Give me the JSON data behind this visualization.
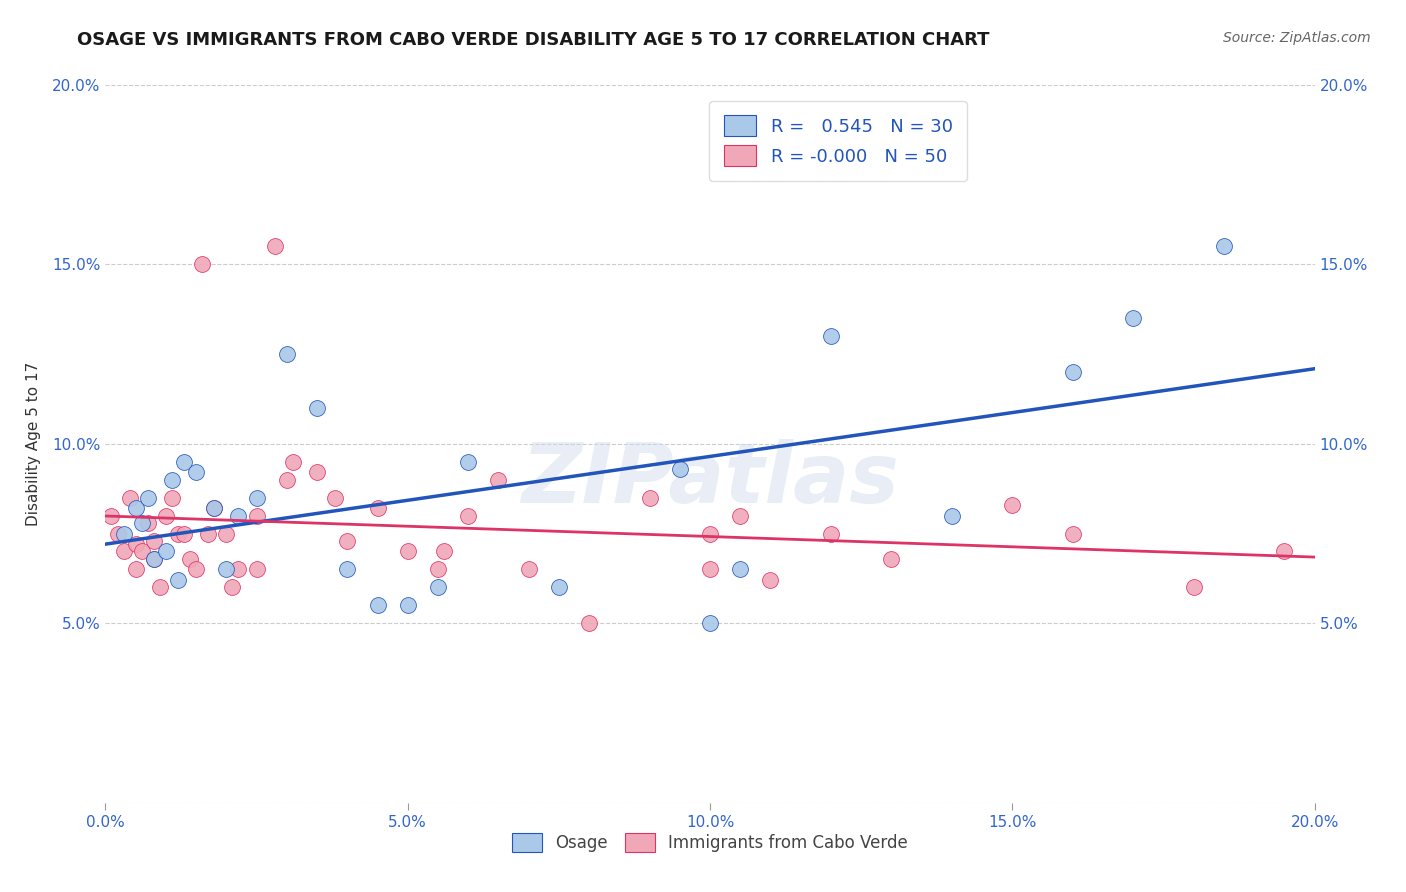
{
  "title": "OSAGE VS IMMIGRANTS FROM CABO VERDE DISABILITY AGE 5 TO 17 CORRELATION CHART",
  "source": "Source: ZipAtlas.com",
  "ylabel": "Disability Age 5 to 17",
  "xlim": [
    0.0,
    0.2
  ],
  "ylim": [
    0.0,
    0.2
  ],
  "xticks": [
    0.0,
    0.05,
    0.1,
    0.15,
    0.2
  ],
  "yticks": [
    0.0,
    0.05,
    0.1,
    0.15,
    0.2
  ],
  "xtick_labels": [
    "0.0%",
    "5.0%",
    "10.0%",
    "15.0%",
    "20.0%"
  ],
  "ytick_labels": [
    "",
    "5.0%",
    "10.0%",
    "15.0%",
    "20.0%"
  ],
  "blue_R": 0.545,
  "blue_N": 30,
  "pink_R": -0.0,
  "pink_N": 50,
  "blue_color": "#aac8e8",
  "pink_color": "#f0a8b8",
  "blue_line_color": "#2255bb",
  "pink_line_color": "#dd3366",
  "legend_label_blue": "Osage",
  "legend_label_pink": "Immigrants from Cabo Verde",
  "watermark": "ZIPatlas",
  "background_color": "#ffffff",
  "title_fontsize": 13,
  "blue_scatter_x": [
    0.003,
    0.005,
    0.006,
    0.007,
    0.008,
    0.01,
    0.011,
    0.012,
    0.013,
    0.015,
    0.018,
    0.02,
    0.022,
    0.025,
    0.03,
    0.035,
    0.04,
    0.045,
    0.05,
    0.055,
    0.06,
    0.075,
    0.095,
    0.1,
    0.105,
    0.12,
    0.14,
    0.16,
    0.17,
    0.185
  ],
  "blue_scatter_y": [
    0.075,
    0.082,
    0.078,
    0.085,
    0.068,
    0.07,
    0.09,
    0.062,
    0.095,
    0.092,
    0.082,
    0.065,
    0.08,
    0.085,
    0.125,
    0.11,
    0.065,
    0.055,
    0.055,
    0.06,
    0.095,
    0.06,
    0.093,
    0.05,
    0.065,
    0.13,
    0.08,
    0.12,
    0.135,
    0.155
  ],
  "pink_scatter_x": [
    0.001,
    0.002,
    0.003,
    0.004,
    0.005,
    0.005,
    0.006,
    0.007,
    0.008,
    0.008,
    0.009,
    0.01,
    0.011,
    0.012,
    0.013,
    0.014,
    0.015,
    0.016,
    0.017,
    0.018,
    0.02,
    0.021,
    0.022,
    0.025,
    0.025,
    0.028,
    0.03,
    0.031,
    0.035,
    0.038,
    0.04,
    0.045,
    0.05,
    0.055,
    0.056,
    0.06,
    0.065,
    0.07,
    0.08,
    0.09,
    0.1,
    0.1,
    0.105,
    0.11,
    0.12,
    0.13,
    0.15,
    0.16,
    0.18,
    0.195
  ],
  "pink_scatter_y": [
    0.08,
    0.075,
    0.07,
    0.085,
    0.065,
    0.072,
    0.07,
    0.078,
    0.068,
    0.073,
    0.06,
    0.08,
    0.085,
    0.075,
    0.075,
    0.068,
    0.065,
    0.15,
    0.075,
    0.082,
    0.075,
    0.06,
    0.065,
    0.08,
    0.065,
    0.155,
    0.09,
    0.095,
    0.092,
    0.085,
    0.073,
    0.082,
    0.07,
    0.065,
    0.07,
    0.08,
    0.09,
    0.065,
    0.05,
    0.085,
    0.075,
    0.065,
    0.08,
    0.062,
    0.075,
    0.068,
    0.083,
    0.075,
    0.06,
    0.07
  ]
}
